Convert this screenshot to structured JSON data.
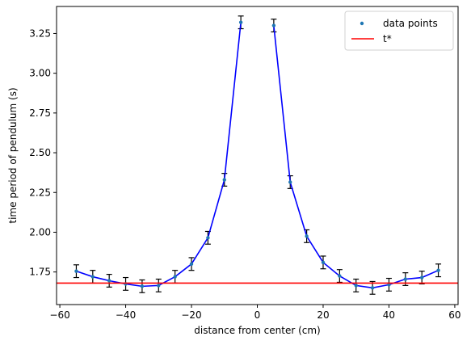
{
  "chart_data": {
    "type": "scatter",
    "xlabel": "distance from center (cm)",
    "ylabel": "time period of pendulum (s)",
    "xlim": [
      -61,
      61
    ],
    "ylim": [
      1.545,
      3.42
    ],
    "xticks": [
      -60,
      -40,
      -20,
      0,
      20,
      40,
      60
    ],
    "xtick_labels": [
      "−60",
      "−40",
      "−20",
      "0",
      "20",
      "40",
      "60"
    ],
    "yticks": [
      1.75,
      2.0,
      2.25,
      2.5,
      2.75,
      3.0,
      3.25
    ],
    "ytick_labels": [
      "1.75",
      "2.00",
      "2.25",
      "2.50",
      "2.75",
      "3.00",
      "3.25"
    ],
    "grid": false,
    "legend_position": "top-right",
    "reference_line": {
      "name": "t*",
      "y": 1.68,
      "color": "#ff0000"
    },
    "series": [
      {
        "name": "data points",
        "marker_color": "#1f77b4",
        "line_color": "#0000ff",
        "errbar_color": "#000000",
        "error": 0.04,
        "segments": [
          {
            "x": [
              -55,
              -50,
              -45,
              -40,
              -35,
              -30,
              -25,
              -20,
              -15,
              -10,
              -5
            ],
            "y": [
              1.755,
              1.72,
              1.695,
              1.675,
              1.66,
              1.665,
              1.72,
              1.8,
              1.965,
              2.33,
              3.32
            ]
          },
          {
            "x": [
              5,
              10,
              15,
              20,
              25,
              30,
              35,
              40,
              45,
              50,
              55
            ],
            "y": [
              3.3,
              2.315,
              1.975,
              1.81,
              1.725,
              1.665,
              1.65,
              1.67,
              1.705,
              1.715,
              1.76
            ]
          }
        ]
      }
    ]
  }
}
